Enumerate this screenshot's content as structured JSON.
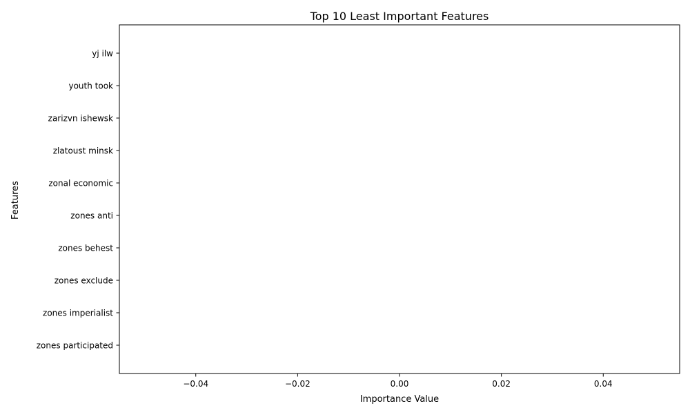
{
  "chart_data": {
    "type": "bar",
    "orientation": "horizontal",
    "title": "Top 10 Least Important Features",
    "xlabel": "Importance Value",
    "ylabel": "Features",
    "categories": [
      "zones participated",
      "zones imperialist",
      "zones exclude",
      "zones behest",
      "zones anti",
      "zonal economic",
      "zlatoust minsk",
      "zarizvn ishewsk",
      "youth took",
      "yj ilw"
    ],
    "values": [
      0,
      0,
      0,
      0,
      0,
      0,
      0,
      0,
      0,
      0
    ],
    "xlim": [
      -0.055,
      0.055
    ],
    "xticks": [
      -0.04,
      -0.02,
      0.0,
      0.02,
      0.04
    ],
    "xtick_labels": [
      "−0.04",
      "−0.02",
      "0.00",
      "0.02",
      "0.04"
    ],
    "bar_color": "#1f77b4",
    "grid": false,
    "legend": "none"
  }
}
